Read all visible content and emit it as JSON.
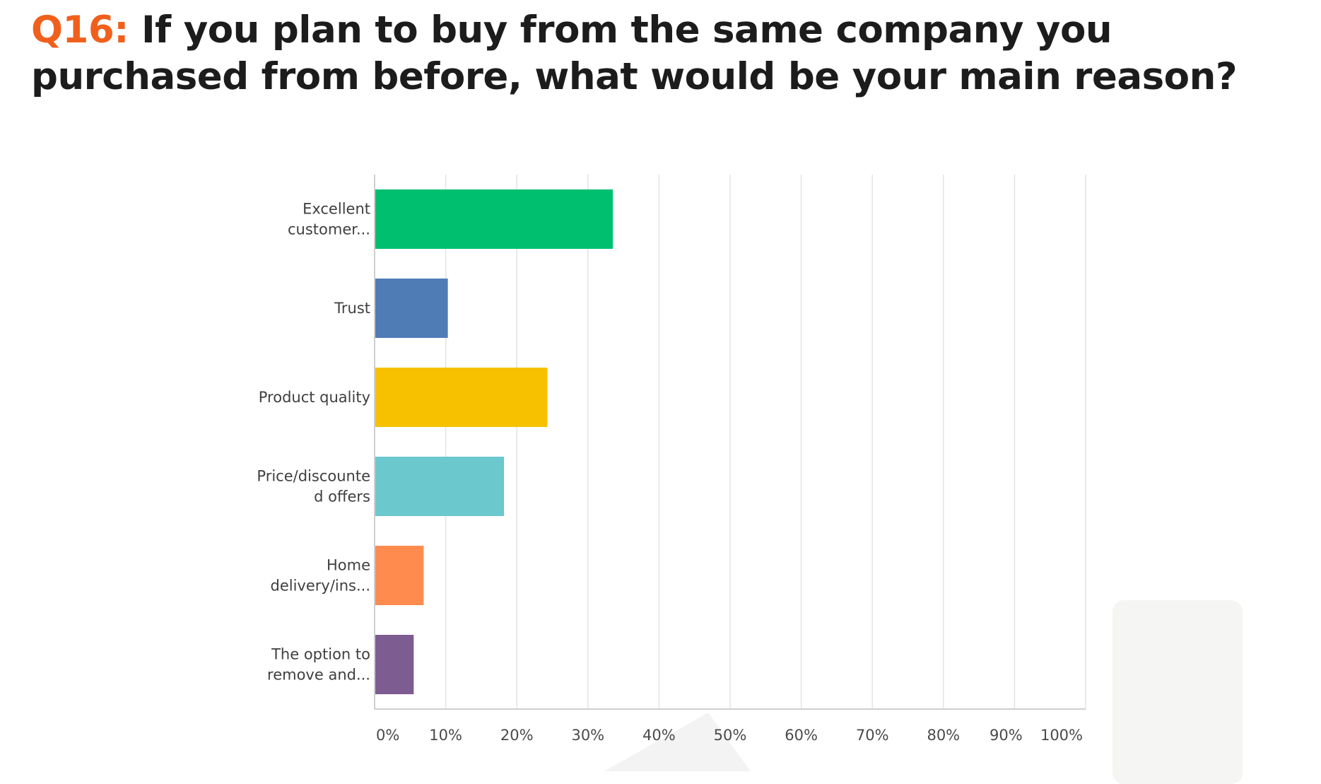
{
  "title": {
    "question_number": "Q16:",
    "question_text": " If you plan to buy from the same company you purchased from before, what would be your main reason?"
  },
  "chart_data": {
    "type": "bar",
    "orientation": "horizontal",
    "categories": [
      [
        "Excellent",
        "customer..."
      ],
      [
        "Trust"
      ],
      [
        "Product quality"
      ],
      [
        "Price/discounte",
        "d offers"
      ],
      [
        "Home",
        "delivery/ins..."
      ],
      [
        "The option to",
        "remove and..."
      ]
    ],
    "values": [
      33.5,
      10.3,
      24.3,
      18.2,
      6.9,
      5.5
    ],
    "colors": [
      "#00bf6f",
      "#507cb6",
      "#f7c100",
      "#6bc8cd",
      "#ff8b4f",
      "#7d5c91"
    ],
    "xlim": [
      0,
      100
    ],
    "ticks": [
      "0%",
      "10%",
      "20%",
      "30%",
      "40%",
      "50%",
      "60%",
      "70%",
      "80%",
      "90%",
      "100%"
    ],
    "grid": true
  }
}
